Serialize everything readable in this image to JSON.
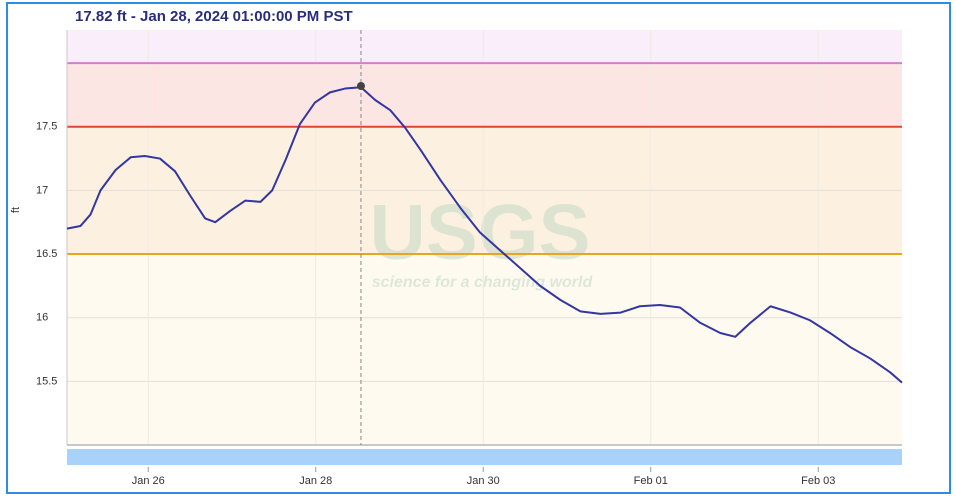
{
  "chart_data": {
    "type": "line",
    "title": "17.82 ft - Jan 28, 2024 01:00:00 PM PST",
    "y_label": "ft",
    "watermark": {
      "logo": "USGS",
      "tagline": "science for a changing world"
    },
    "xlim": [
      25.03,
      35.0
    ],
    "xticks": [
      {
        "value": 26,
        "label": "Jan 26"
      },
      {
        "value": 28,
        "label": "Jan 28"
      },
      {
        "value": 30,
        "label": "Jan 30"
      },
      {
        "value": 32,
        "label": "Feb 01"
      },
      {
        "value": 34,
        "label": "Feb 03"
      }
    ],
    "ylim": [
      15.0,
      18.26
    ],
    "yticks": [
      15.5,
      16.0,
      16.5,
      17.0,
      17.5
    ],
    "grid": true,
    "thresholds": [
      {
        "value": 18.0,
        "color": "#d67bd9",
        "band": "#fbeefb"
      },
      {
        "value": 17.5,
        "color": "#e0452f",
        "band": "#fce6e3"
      },
      {
        "value": 16.5,
        "color": "#e3a81c",
        "band": "#fcf1e0"
      }
    ],
    "base_band": "#fffaf0",
    "series": [
      {
        "name": "Gage height",
        "color": "#3336a3",
        "x": [
          25.03,
          25.19,
          25.31,
          25.43,
          25.61,
          25.79,
          25.96,
          26.14,
          26.32,
          26.5,
          26.68,
          26.8,
          26.98,
          27.16,
          27.34,
          27.48,
          27.64,
          27.81,
          27.99,
          28.17,
          28.35,
          28.54,
          28.71,
          28.89,
          29.07,
          29.25,
          29.49,
          29.73,
          29.96,
          30.2,
          30.44,
          30.68,
          30.92,
          31.16,
          31.4,
          31.64,
          31.87,
          32.11,
          32.35,
          32.59,
          32.83,
          33.01,
          33.19,
          33.43,
          33.67,
          33.9,
          34.14,
          34.38,
          34.62,
          34.86,
          35.0
        ],
        "values": [
          16.7,
          16.72,
          16.81,
          17.0,
          17.16,
          17.26,
          17.27,
          17.25,
          17.15,
          16.96,
          16.78,
          16.75,
          16.84,
          16.92,
          16.91,
          17.0,
          17.24,
          17.52,
          17.69,
          17.77,
          17.8,
          17.81,
          17.71,
          17.63,
          17.49,
          17.32,
          17.08,
          16.86,
          16.67,
          16.53,
          16.39,
          16.25,
          16.14,
          16.05,
          16.03,
          16.04,
          16.09,
          16.1,
          16.08,
          15.96,
          15.88,
          15.85,
          15.96,
          16.09,
          16.04,
          15.98,
          15.88,
          15.77,
          15.68,
          15.57,
          15.49
        ]
      }
    ],
    "hover": {
      "x": 28.54,
      "value": 17.82
    }
  }
}
